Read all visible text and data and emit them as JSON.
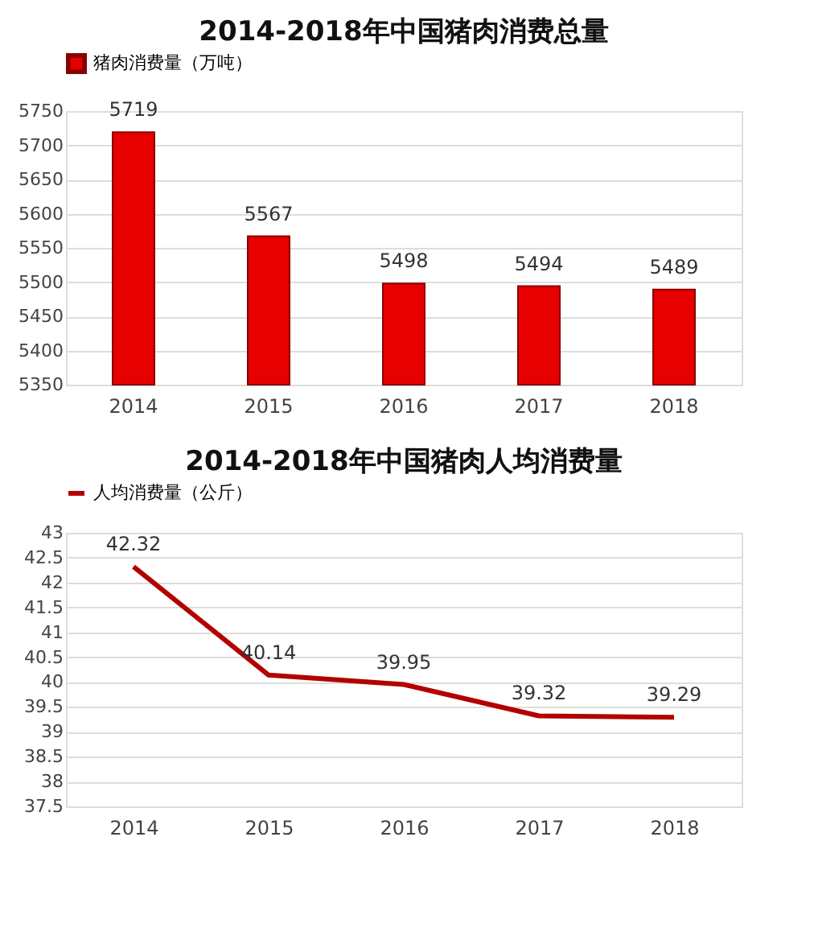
{
  "chart_data": [
    {
      "type": "bar",
      "title": "2014-2018年中国猪肉消费总量",
      "categories": [
        "2014",
        "2015",
        "2016",
        "2017",
        "2018"
      ],
      "series": [
        {
          "name": "猪肉消费量（万吨）",
          "color": "#e60000",
          "values": [
            5719,
            5567,
            5498,
            5494,
            5489
          ]
        }
      ],
      "ylim": [
        5350,
        5750
      ],
      "yticks": [
        5350,
        5400,
        5450,
        5500,
        5550,
        5600,
        5650,
        5700,
        5750
      ],
      "grid": "y",
      "legend": "top",
      "data_labels": true
    },
    {
      "type": "line",
      "title": "2014-2018年中国猪肉人均消费量",
      "categories": [
        "2014",
        "2015",
        "2016",
        "2017",
        "2018"
      ],
      "series": [
        {
          "name": "人均消费量（公斤）",
          "color": "#b30000",
          "values": [
            42.32,
            40.14,
            39.95,
            39.32,
            39.29
          ]
        }
      ],
      "ylim": [
        37.5,
        43
      ],
      "yticks": [
        37.5,
        38,
        38.5,
        39,
        39.5,
        40,
        40.5,
        41,
        41.5,
        42,
        42.5,
        43
      ],
      "grid": "y",
      "legend": "top",
      "data_labels": true,
      "marker": "none",
      "line_style": "solid"
    }
  ]
}
